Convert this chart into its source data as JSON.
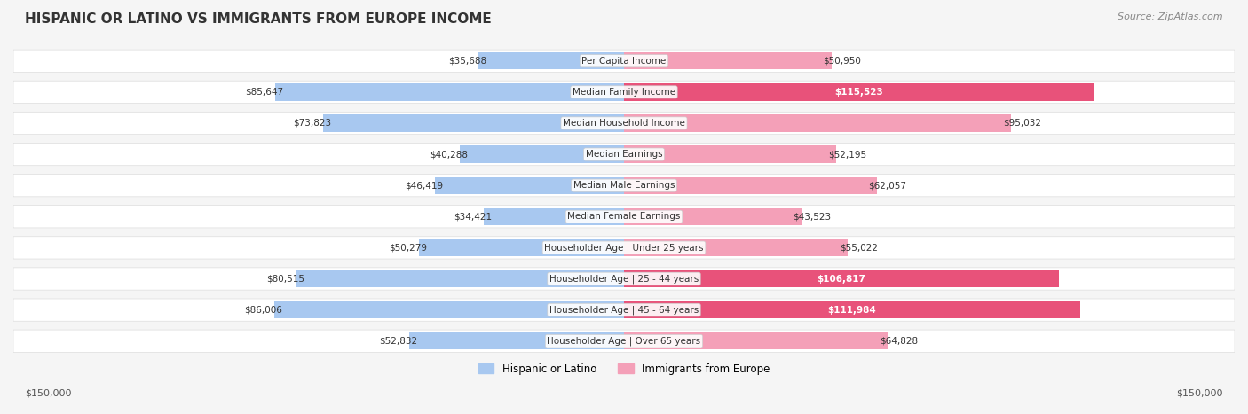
{
  "title": "HISPANIC OR LATINO VS IMMIGRANTS FROM EUROPE INCOME",
  "source": "Source: ZipAtlas.com",
  "categories": [
    "Per Capita Income",
    "Median Family Income",
    "Median Household Income",
    "Median Earnings",
    "Median Male Earnings",
    "Median Female Earnings",
    "Householder Age | Under 25 years",
    "Householder Age | 25 - 44 years",
    "Householder Age | 45 - 64 years",
    "Householder Age | Over 65 years"
  ],
  "hispanic_values": [
    35688,
    85647,
    73823,
    40288,
    46419,
    34421,
    50279,
    80515,
    86006,
    52832
  ],
  "europe_values": [
    50950,
    115523,
    95032,
    52195,
    62057,
    43523,
    55022,
    106817,
    111984,
    64828
  ],
  "hispanic_labels": [
    "$35,688",
    "$85,647",
    "$73,823",
    "$40,288",
    "$46,419",
    "$34,421",
    "$50,279",
    "$80,515",
    "$86,006",
    "$52,832"
  ],
  "europe_labels": [
    "$50,950",
    "$115,523",
    "$95,032",
    "$52,195",
    "$62,057",
    "$43,523",
    "$55,022",
    "$106,817",
    "$111,984",
    "$64,828"
  ],
  "max_value": 150000,
  "hispanic_color_light": "#a8c8f0",
  "hispanic_color_dark": "#6699cc",
  "europe_color_light": "#f4a0b8",
  "europe_color_dark": "#e8527a",
  "bg_color": "#f5f5f5",
  "row_bg": "#ffffff",
  "legend_hispanic": "Hispanic or Latino",
  "legend_europe": "Immigrants from Europe",
  "xlabel_left": "$150,000",
  "xlabel_right": "$150,000",
  "high_value_threshold": 100000
}
